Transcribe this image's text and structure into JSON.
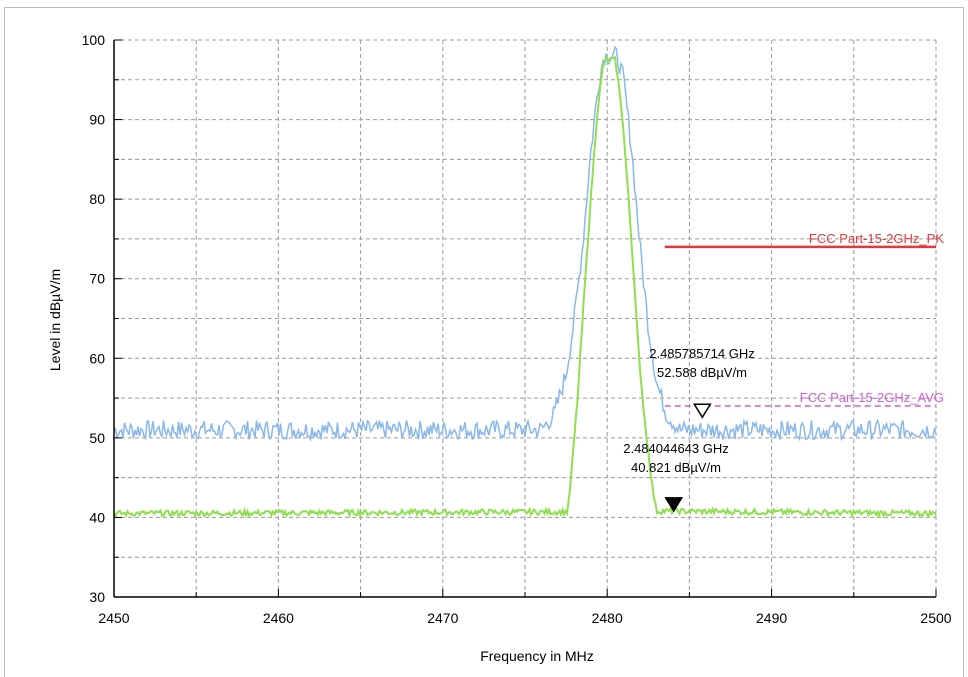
{
  "chart_data": {
    "type": "line",
    "xlabel": "Frequency in MHz",
    "ylabel": "Level in dBµV/m",
    "xlim": [
      2450,
      2500
    ],
    "ylim": [
      30,
      100
    ],
    "x_ticks": [
      "2450",
      "2460",
      "2470",
      "2480",
      "2490",
      "2500"
    ],
    "y_ticks": [
      "30",
      "40",
      "50",
      "60",
      "70",
      "80",
      "90",
      "100"
    ],
    "grid": true,
    "series": [
      {
        "color": "#8ab8ea",
        "x": [
          2450,
          2476.0,
          2476.8,
          2477.5,
          2478.0,
          2478.5,
          2479.0,
          2479.5,
          2479.8,
          2480.6,
          2481.0,
          2481.5,
          2482.0,
          2482.5,
          2483.0,
          2483.6,
          2484.4,
          2500
        ],
        "y": [
          51,
          51,
          53,
          58,
          65,
          74,
          86,
          95,
          98,
          98,
          95,
          86,
          74,
          64,
          57,
          53,
          51,
          51
        ]
      },
      {
        "color": "#8ee04e",
        "x": [
          2450,
          2477.6,
          2477.8,
          2478.2,
          2478.6,
          2479.0,
          2479.4,
          2479.8,
          2480.5,
          2480.9,
          2481.3,
          2481.7,
          2482.0,
          2482.4,
          2482.8,
          2483.0,
          2500
        ],
        "y": [
          40.5,
          40.7,
          45,
          55,
          68,
          80,
          91,
          97.5,
          97.5,
          91,
          80,
          68,
          58,
          50,
          43,
          40.8,
          40.5
        ]
      }
    ],
    "limit_lines": [
      {
        "label": "FCC Part-15-2GHz_PK",
        "value": 74,
        "x_start": 2483.5,
        "x_end": 2500,
        "color": "#e03a3a",
        "style": "solid"
      },
      {
        "label": "FCC Part-15-2GHz_AVG",
        "value": 54,
        "x_start": 2483.5,
        "x_end": 2500,
        "color": "#d15ed6",
        "style": "dashed"
      }
    ],
    "markers": [
      {
        "x": 2485.785714,
        "y": 52.588,
        "style": "hollow",
        "text1": "2.485785714 GHz",
        "text2": "52.588 dBµV/m"
      },
      {
        "x": 2484.044643,
        "y": 40.821,
        "style": "filled",
        "text1": "2.484044643 GHz",
        "text2": "40.821 dBµV/m"
      }
    ]
  }
}
